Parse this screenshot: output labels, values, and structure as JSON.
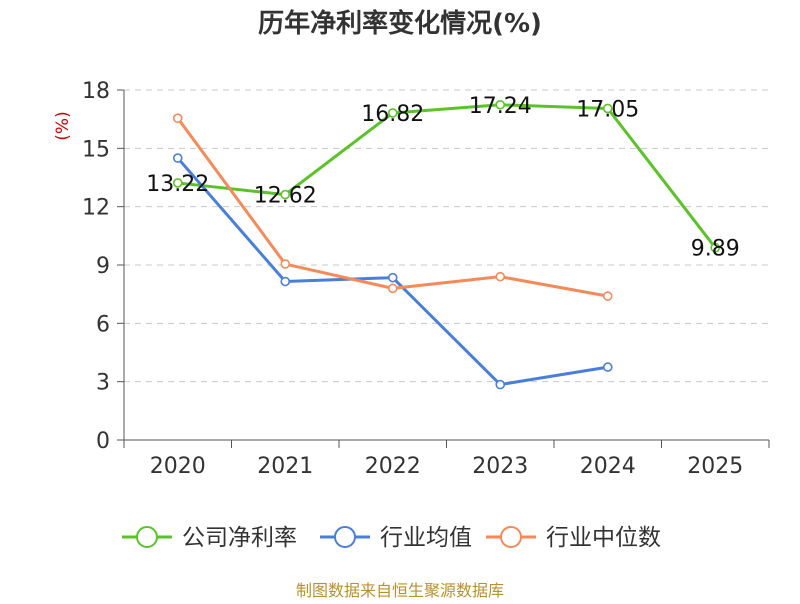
{
  "chart_data": {
    "type": "line",
    "title": "历年净利率变化情况(%)",
    "ylabel": "(%)",
    "xlabel": "",
    "ylim": [
      0,
      18
    ],
    "yticks": [
      0,
      3,
      6,
      9,
      12,
      15,
      18
    ],
    "categories": [
      "2020",
      "2021",
      "2022",
      "2023",
      "2024",
      "2025"
    ],
    "grid": true,
    "legend_position": "bottom",
    "series": [
      {
        "name": "公司净利率",
        "color": "#5bc22a",
        "values": [
          13.22,
          12.62,
          16.82,
          17.24,
          17.05,
          9.89
        ],
        "labels": [
          "13.22",
          "12.62",
          "16.82",
          "17.24",
          "17.05",
          "9.89"
        ]
      },
      {
        "name": "行业均值",
        "color": "#4a7fd9",
        "values": [
          14.5,
          8.15,
          8.35,
          2.85,
          3.75,
          null
        ]
      },
      {
        "name": "行业中位数",
        "color": "#f48a5a",
        "values": [
          16.55,
          9.05,
          7.8,
          8.4,
          7.4,
          null
        ]
      }
    ],
    "source": "制图数据来自恒生聚源数据库"
  }
}
